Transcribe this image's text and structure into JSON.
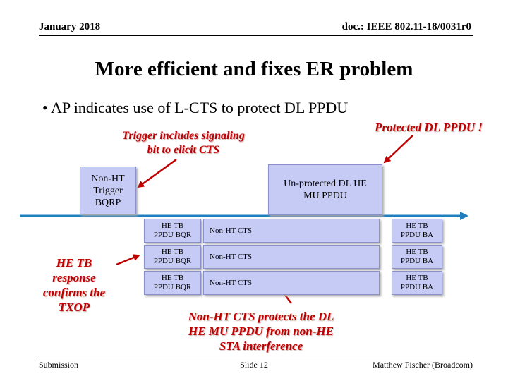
{
  "header": {
    "date": "January 2018",
    "doc": "doc.: IEEE 802.11-18/0031r0"
  },
  "title": "More efficient and fixes ER problem",
  "bullet": "• AP indicates use of L-CTS to protect DL PPDU",
  "annotations": {
    "trigger_note": [
      "Trigger includes signaling",
      "bit to elicit CTS"
    ],
    "protected_note": "Protected DL PPDU !",
    "response_note": [
      "HE TB",
      "response",
      "confirms the",
      "TXOP"
    ],
    "cts_note": [
      "Non-HT CTS protects the DL",
      "HE MU PPDU from non-HE",
      "STA interference"
    ]
  },
  "boxes": {
    "trigger": [
      "Non-HT",
      "Trigger",
      "BQRP"
    ],
    "mu_ppdu": [
      "Un-protected DL HE",
      "MU PPDU"
    ],
    "rows": [
      {
        "bqr": [
          "HE TB",
          "PPDU BQR"
        ],
        "cts": "Non-HT CTS",
        "ba": [
          "HE TB",
          "PPDU BA"
        ]
      },
      {
        "bqr": [
          "HE TB",
          "PPDU BQR"
        ],
        "cts": "Non-HT CTS",
        "ba": [
          "HE TB",
          "PPDU BA"
        ]
      },
      {
        "bqr": [
          "HE TB",
          "PPDU BQR"
        ],
        "cts": "Non-HT CTS",
        "ba": [
          "HE TB",
          "PPDU BA"
        ]
      }
    ]
  },
  "footer": {
    "left": "Submission",
    "center": "Slide 12",
    "right": "Matthew Fischer (Broadcom)"
  },
  "colors": {
    "box_fill": "#c5cbf4",
    "accent_red": "#c00000",
    "timeline": "#1f7fbf"
  }
}
